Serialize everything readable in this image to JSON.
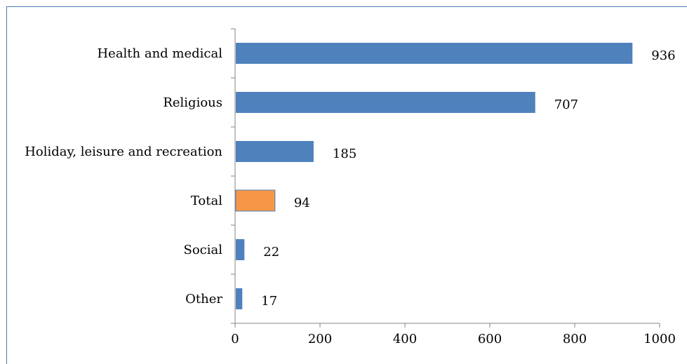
{
  "chart_data": {
    "type": "bar",
    "orientation": "horizontal",
    "categories": [
      "Health and medical",
      "Religious",
      "Holiday, leisure and recreation",
      "Total",
      "Social",
      "Other"
    ],
    "values": [
      936,
      707,
      185,
      94,
      22,
      17
    ],
    "highlight_category": "Total",
    "bar_color": "#4f81bd",
    "highlight_color": "#f79646",
    "xlim": [
      0,
      1000
    ],
    "x_ticks": [
      0,
      200,
      400,
      600,
      800,
      1000
    ],
    "title": "",
    "xlabel": "",
    "ylabel": "",
    "grid": false,
    "legend": "none"
  }
}
